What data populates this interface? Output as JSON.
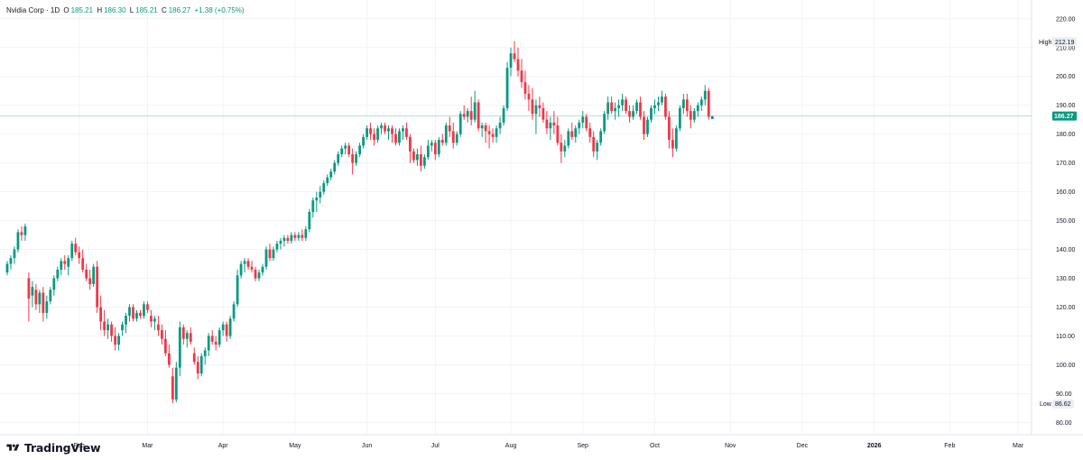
{
  "legend": {
    "title": "Nvidia Corp · 1D",
    "o_key": "O",
    "o_val": "185.21",
    "h_key": "H",
    "h_val": "186.30",
    "l_key": "L",
    "l_val": "185.21",
    "c_key": "C",
    "c_val": "186.27",
    "change": "+1.38 (+0.75%)"
  },
  "footer": {
    "brand": "TradingView"
  },
  "markers": {
    "high_label": "High",
    "high_value": "212.19",
    "low_label": "Low",
    "low_value": "86.62",
    "last_value": "186.27"
  },
  "colors": {
    "up": "#089981",
    "down": "#f23645",
    "grid": "#f0f3fa",
    "last_line": "#089981"
  },
  "chart_data": {
    "type": "candlestick",
    "title": "Nvidia Corp · 1D",
    "ylim": [
      77,
      224
    ],
    "y_ticks": [
      80,
      90,
      100,
      110,
      120,
      130,
      140,
      150,
      160,
      170,
      180,
      190,
      200,
      210,
      220
    ],
    "y_tick_labels": [
      "80.00",
      "90.00",
      "100.00",
      "110.00",
      "120.00",
      "130.00",
      "140.00",
      "150.00",
      "160.00",
      "170.00",
      "180.00",
      "190.00",
      "200.00",
      "210.00",
      "220.00"
    ],
    "x_labels": [
      {
        "label": "Feb",
        "index": 20
      },
      {
        "label": "Mar",
        "index": 39
      },
      {
        "label": "Apr",
        "index": 60
      },
      {
        "label": "May",
        "index": 80
      },
      {
        "label": "Jun",
        "index": 100
      },
      {
        "label": "Jul",
        "index": 119
      },
      {
        "label": "Aug",
        "index": 140
      },
      {
        "label": "Sep",
        "index": 160
      },
      {
        "label": "Oct",
        "index": 180
      },
      {
        "label": "Nov",
        "index": 201
      },
      {
        "label": "Dec",
        "index": 221
      },
      {
        "label": "2026",
        "index": 241
      },
      {
        "label": "Feb",
        "index": 262
      },
      {
        "label": "Mar",
        "index": 281
      }
    ],
    "last_price": 186.27,
    "high": 212.19,
    "low": 86.62,
    "grid": true,
    "candles": [
      [
        132,
        136,
        131,
        135
      ],
      [
        135,
        138,
        133,
        137
      ],
      [
        137,
        141,
        135,
        140
      ],
      [
        140,
        147,
        139,
        146
      ],
      [
        146,
        148,
        143,
        145
      ],
      [
        145,
        149,
        143,
        148
      ],
      [
        130,
        132,
        115,
        123
      ],
      [
        124,
        129,
        120,
        127
      ],
      [
        126,
        128,
        119,
        121
      ],
      [
        121,
        126,
        118,
        125
      ],
      [
        125,
        127,
        115,
        118
      ],
      [
        118,
        124,
        116,
        122
      ],
      [
        122,
        127,
        121,
        126
      ],
      [
        126,
        131,
        124,
        130
      ],
      [
        130,
        134,
        129,
        133
      ],
      [
        133,
        137,
        131,
        136
      ],
      [
        136,
        138,
        133,
        135
      ],
      [
        134,
        138,
        131,
        137
      ],
      [
        137,
        143,
        136,
        142
      ],
      [
        142,
        144,
        138,
        139
      ],
      [
        139,
        141,
        135,
        137
      ],
      [
        137,
        140,
        132,
        133
      ],
      [
        133,
        135,
        129,
        130
      ],
      [
        130,
        133,
        126,
        128
      ],
      [
        128,
        135,
        127,
        134
      ],
      [
        134,
        136,
        118,
        120
      ],
      [
        120,
        124,
        112,
        115
      ],
      [
        115,
        119,
        110,
        112
      ],
      [
        112,
        116,
        109,
        114
      ],
      [
        114,
        115,
        108,
        110
      ],
      [
        110,
        113,
        105,
        107
      ],
      [
        107,
        111,
        105,
        110
      ],
      [
        112,
        115,
        110,
        114
      ],
      [
        114,
        118,
        111,
        117
      ],
      [
        117,
        121,
        115,
        120
      ],
      [
        120,
        121,
        115,
        116
      ],
      [
        116,
        119,
        115,
        118
      ],
      [
        118,
        119,
        116,
        117
      ],
      [
        117,
        122,
        116,
        121
      ],
      [
        121,
        122,
        118,
        119
      ],
      [
        117,
        119,
        113,
        115
      ],
      [
        115,
        117,
        112,
        116
      ],
      [
        114,
        117,
        110,
        112
      ],
      [
        112,
        114,
        107,
        109
      ],
      [
        109,
        112,
        103,
        104
      ],
      [
        104,
        107,
        99,
        100
      ],
      [
        96,
        99,
        86.62,
        88
      ],
      [
        88,
        101,
        87,
        99
      ],
      [
        99,
        115,
        96,
        113
      ],
      [
        113,
        114,
        107,
        109
      ],
      [
        109,
        112,
        106,
        111
      ],
      [
        111,
        113,
        107,
        108
      ],
      [
        104,
        106,
        100,
        101
      ],
      [
        101,
        103,
        95,
        97
      ],
      [
        97,
        104,
        96,
        103
      ],
      [
        103,
        106,
        100,
        105
      ],
      [
        105,
        111,
        103,
        110
      ],
      [
        110,
        112,
        107,
        108
      ],
      [
        108,
        110,
        105,
        107
      ],
      [
        107,
        113,
        106,
        112
      ],
      [
        112,
        115,
        110,
        114
      ],
      [
        114,
        115,
        108,
        110
      ],
      [
        110,
        117,
        109,
        116
      ],
      [
        116,
        122,
        115,
        121
      ],
      [
        121,
        133,
        120,
        131
      ],
      [
        131,
        136,
        130,
        135
      ],
      [
        135,
        137,
        132,
        136
      ],
      [
        136,
        137,
        133,
        134
      ],
      [
        134,
        136,
        132,
        133
      ],
      [
        133,
        134,
        129,
        130
      ],
      [
        130,
        133,
        129,
        132
      ],
      [
        132,
        135,
        131,
        134
      ],
      [
        134,
        141,
        133,
        140
      ],
      [
        140,
        142,
        136,
        137
      ],
      [
        137,
        141,
        136,
        140
      ],
      [
        140,
        143,
        139,
        142
      ],
      [
        142,
        144,
        140,
        143
      ],
      [
        143,
        145,
        141,
        144
      ],
      [
        144,
        145,
        142,
        143
      ],
      [
        143,
        146,
        142,
        145
      ],
      [
        145,
        146,
        143,
        144
      ],
      [
        144,
        146,
        143,
        145
      ],
      [
        145,
        147,
        143,
        144
      ],
      [
        144,
        148,
        143,
        147
      ],
      [
        147,
        154,
        146,
        153
      ],
      [
        153,
        158,
        151,
        157
      ],
      [
        157,
        160,
        153,
        158
      ],
      [
        158,
        162,
        156,
        160
      ],
      [
        160,
        164,
        159,
        163
      ],
      [
        163,
        166,
        162,
        165
      ],
      [
        165,
        168,
        164,
        167
      ],
      [
        167,
        171,
        166,
        170
      ],
      [
        170,
        174,
        169,
        173
      ],
      [
        173,
        176,
        172,
        175
      ],
      [
        175,
        177,
        173,
        176
      ],
      [
        176,
        177,
        172,
        173
      ],
      [
        173,
        175,
        166,
        170
      ],
      [
        170,
        174,
        169,
        173
      ],
      [
        173,
        177,
        172,
        176
      ],
      [
        176,
        180,
        175,
        179
      ],
      [
        179,
        183,
        178,
        182
      ],
      [
        182,
        184,
        178,
        180
      ],
      [
        180,
        182,
        176,
        178
      ],
      [
        178,
        183,
        177,
        182
      ],
      [
        182,
        184,
        180,
        183
      ],
      [
        183,
        184,
        180,
        181
      ],
      [
        181,
        183,
        178,
        182
      ],
      [
        182,
        183,
        177,
        180
      ],
      [
        180,
        182,
        176,
        177
      ],
      [
        177,
        182,
        176,
        181
      ],
      [
        181,
        183,
        178,
        182
      ],
      [
        182,
        184,
        178,
        179
      ],
      [
        179,
        180,
        170,
        174
      ],
      [
        174,
        175,
        170,
        171
      ],
      [
        171,
        175,
        169,
        173
      ],
      [
        173,
        176,
        167,
        169
      ],
      [
        169,
        173,
        168,
        172
      ],
      [
        172,
        178,
        171,
        176
      ],
      [
        176,
        178,
        174,
        177
      ],
      [
        177,
        178,
        171,
        173
      ],
      [
        173,
        179,
        172,
        178
      ],
      [
        178,
        180,
        176,
        177
      ],
      [
        177,
        184,
        176,
        183
      ],
      [
        183,
        186,
        179,
        181
      ],
      [
        181,
        184,
        175,
        177
      ],
      [
        177,
        181,
        176,
        180
      ],
      [
        180,
        188,
        179,
        187
      ],
      [
        187,
        190,
        185,
        186
      ],
      [
        186,
        189,
        184,
        188
      ],
      [
        188,
        193,
        183,
        185
      ],
      [
        185,
        195,
        184,
        191
      ],
      [
        191,
        192,
        181,
        182
      ],
      [
        182,
        184,
        179,
        183
      ],
      [
        183,
        184,
        177,
        181
      ],
      [
        181,
        183,
        175,
        180
      ],
      [
        180,
        182,
        177,
        179
      ],
      [
        179,
        183,
        177,
        182
      ],
      [
        182,
        186,
        180,
        184
      ],
      [
        184,
        190,
        183,
        189
      ],
      [
        189,
        205,
        188,
        203
      ],
      [
        203,
        210,
        200,
        208
      ],
      [
        208,
        212.19,
        205,
        206
      ],
      [
        206,
        210,
        200,
        202
      ],
      [
        202,
        206,
        196,
        198
      ],
      [
        198,
        202,
        192,
        194
      ],
      [
        194,
        197,
        188,
        192
      ],
      [
        192,
        196,
        185,
        187
      ],
      [
        187,
        192,
        180,
        190
      ],
      [
        190,
        193,
        186,
        189
      ],
      [
        189,
        191,
        184,
        185
      ],
      [
        185,
        188,
        180,
        182
      ],
      [
        182,
        186,
        178,
        184
      ],
      [
        184,
        188,
        180,
        183
      ],
      [
        183,
        186,
        176,
        177
      ],
      [
        177,
        180,
        170,
        174
      ],
      [
        174,
        178,
        172,
        176
      ],
      [
        176,
        182,
        175,
        181
      ],
      [
        181,
        184,
        178,
        179
      ],
      [
        179,
        183,
        177,
        182
      ],
      [
        182,
        185,
        180,
        184
      ],
      [
        184,
        188,
        182,
        186
      ],
      [
        186,
        187,
        181,
        182
      ],
      [
        182,
        184,
        177,
        179
      ],
      [
        179,
        181,
        172,
        174
      ],
      [
        174,
        178,
        171,
        177
      ],
      [
        177,
        182,
        176,
        181
      ],
      [
        181,
        188,
        180,
        187
      ],
      [
        187,
        193,
        185,
        191
      ],
      [
        191,
        193,
        187,
        188
      ],
      [
        188,
        191,
        185,
        189
      ],
      [
        189,
        192,
        186,
        190
      ],
      [
        190,
        194,
        188,
        192
      ],
      [
        192,
        193,
        187,
        188
      ],
      [
        188,
        190,
        184,
        186
      ],
      [
        186,
        190,
        185,
        188
      ],
      [
        188,
        192,
        187,
        191
      ],
      [
        191,
        193,
        185,
        186
      ],
      [
        186,
        188,
        178,
        180
      ],
      [
        180,
        186,
        179,
        185
      ],
      [
        185,
        190,
        184,
        189
      ],
      [
        189,
        192,
        187,
        190
      ],
      [
        190,
        193,
        188,
        191
      ],
      [
        191,
        195,
        190,
        193
      ],
      [
        193,
        194,
        185,
        186
      ],
      [
        186,
        188,
        175,
        178
      ],
      [
        178,
        182,
        172,
        175
      ],
      [
        175,
        183,
        174,
        182
      ],
      [
        182,
        190,
        181,
        189
      ],
      [
        189,
        194,
        187,
        192
      ],
      [
        192,
        194,
        186,
        188
      ],
      [
        188,
        190,
        182,
        185
      ],
      [
        185,
        189,
        184,
        188
      ],
      [
        188,
        191,
        186,
        190
      ],
      [
        190,
        193,
        188,
        192
      ],
      [
        192,
        197,
        190,
        195
      ],
      [
        195,
        196,
        185,
        186
      ],
      [
        185.21,
        186.3,
        185.21,
        186.27
      ]
    ]
  }
}
